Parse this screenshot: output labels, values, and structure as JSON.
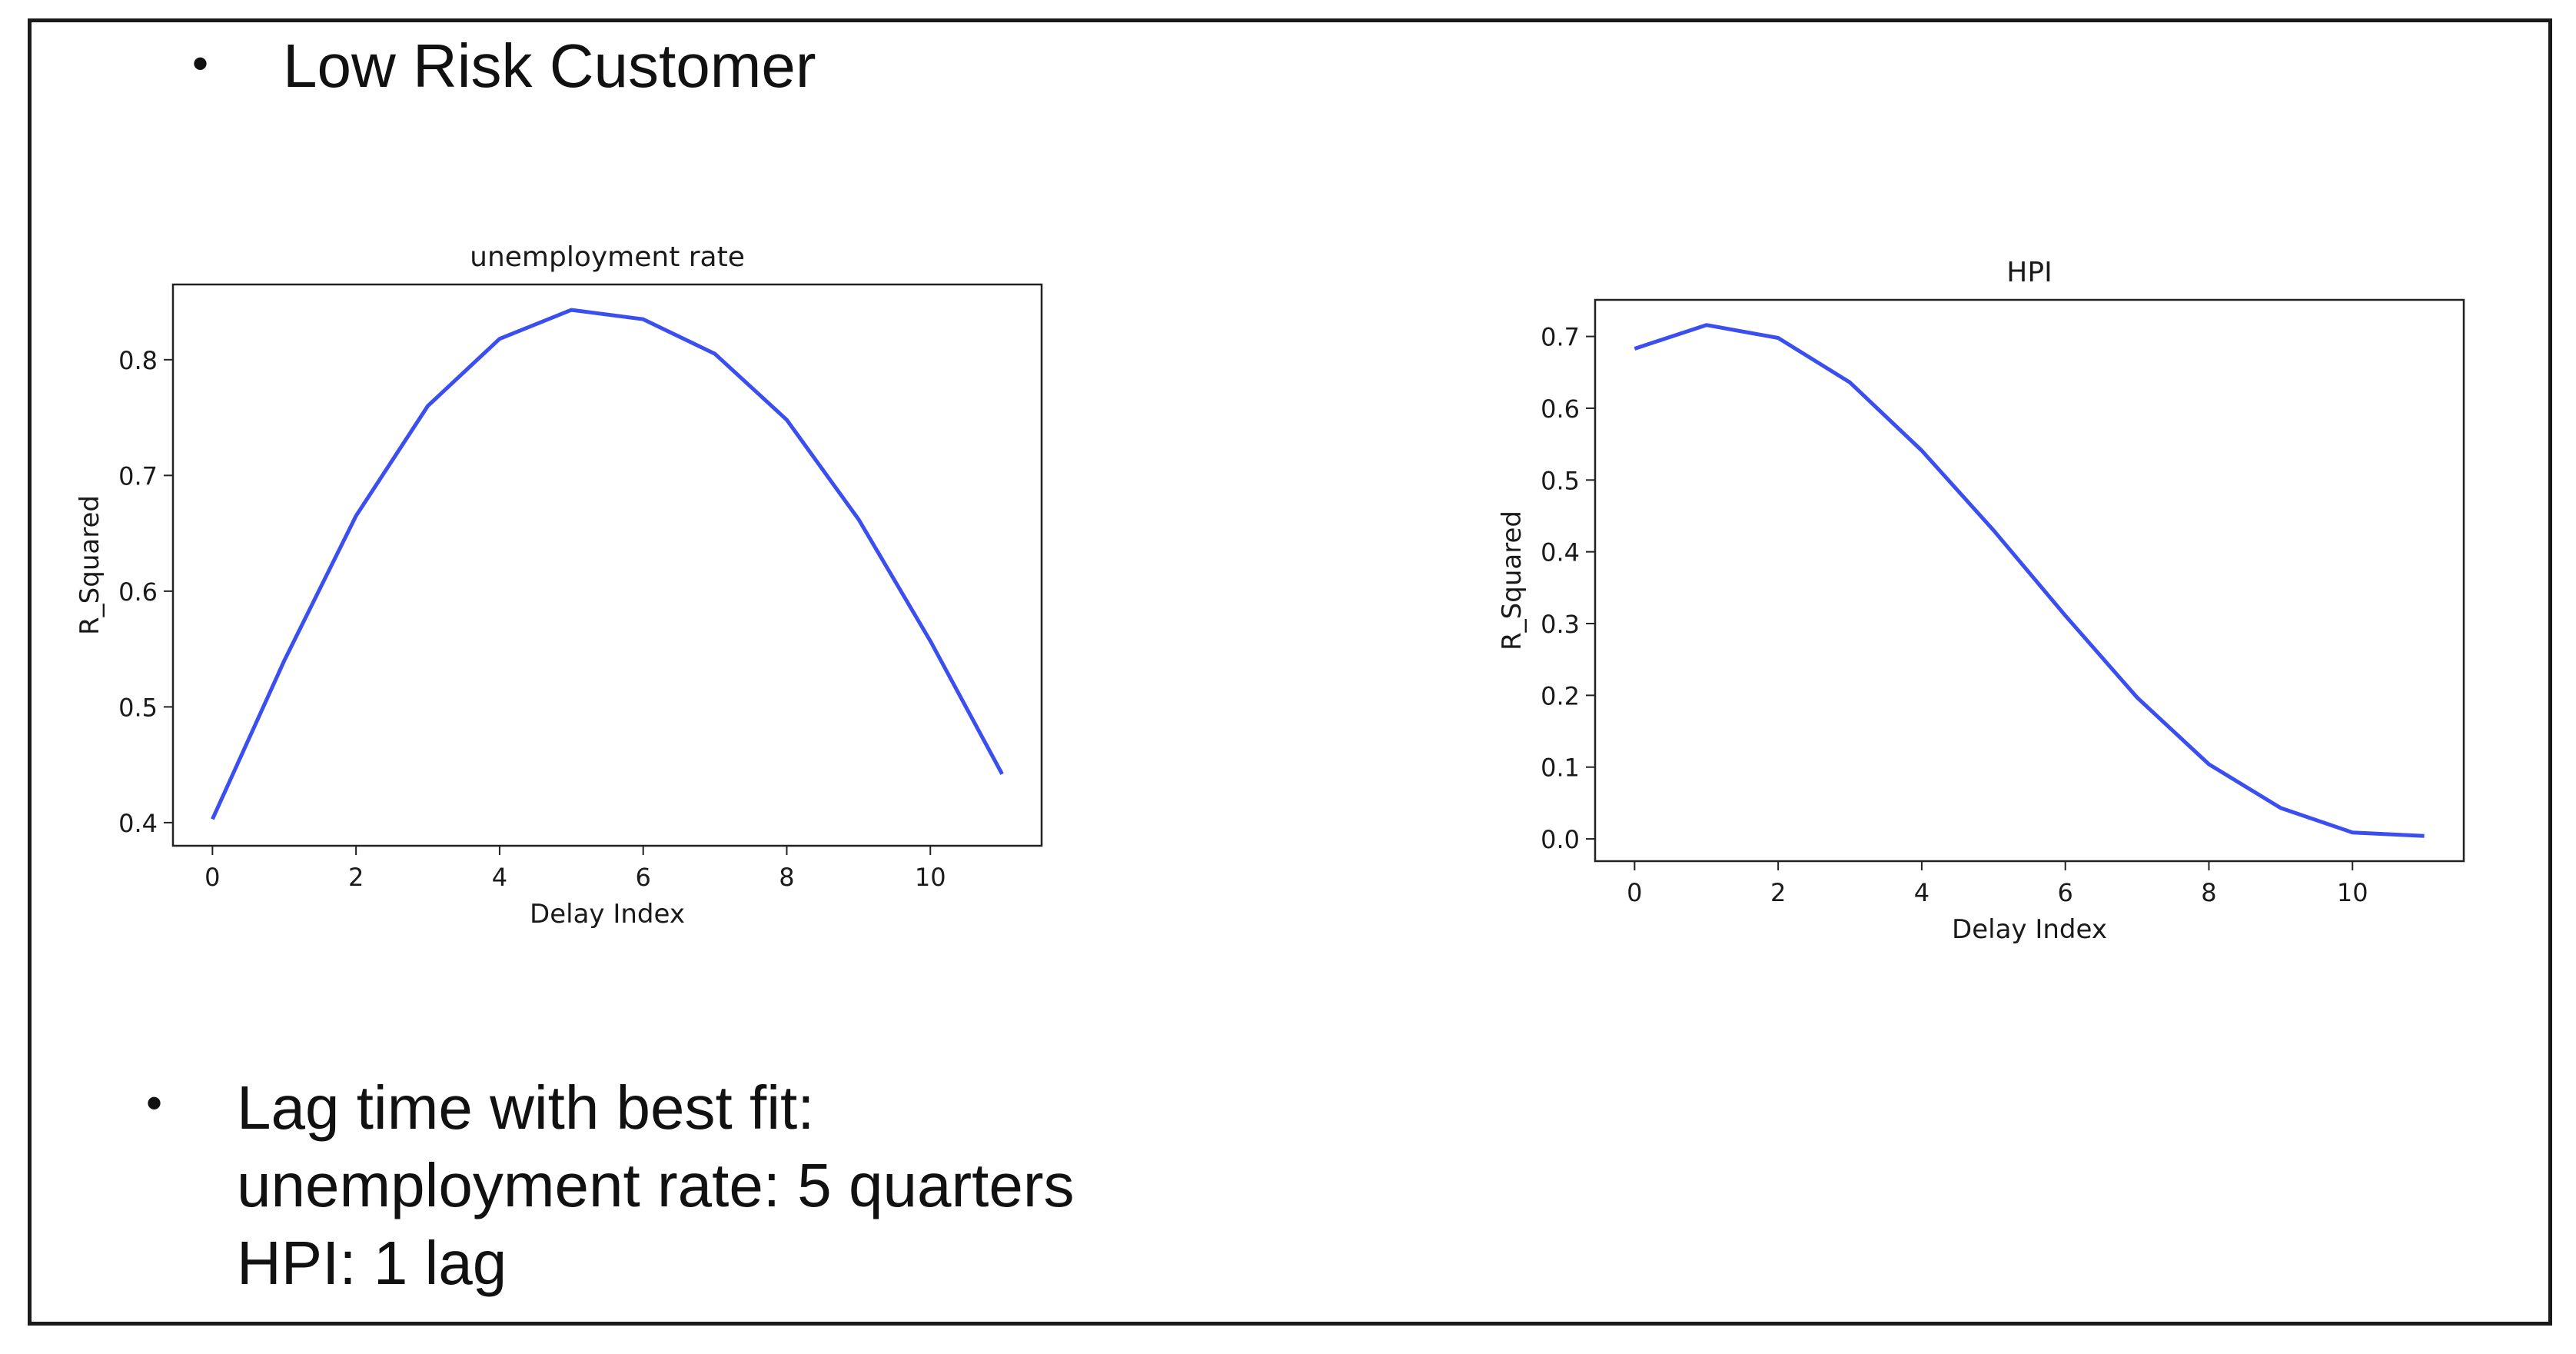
{
  "slide": {
    "heading": "Low Risk Customer",
    "notes": {
      "lines": [
        "Lag time with best fit:",
        "unemployment rate: 5 quarters",
        "HPI: 1 lag"
      ]
    }
  },
  "chart_data": [
    {
      "type": "line",
      "title": "unemployment rate",
      "xlabel": "Delay Index",
      "ylabel": "R_Squared",
      "x": [
        0,
        1,
        2,
        3,
        4,
        5,
        6,
        7,
        8,
        9,
        10,
        11
      ],
      "series": [
        {
          "values": [
            0.403,
            0.54,
            0.665,
            0.76,
            0.818,
            0.843,
            0.835,
            0.805,
            0.748,
            0.662,
            0.557,
            0.442
          ],
          "color": "#3b4ef0"
        }
      ],
      "xticks": [
        0,
        2,
        4,
        6,
        8,
        10
      ],
      "yticks": [
        0.4,
        0.5,
        0.6,
        0.7,
        0.8
      ],
      "xtick_labels": [
        "0",
        "2",
        "4",
        "6",
        "8",
        "10"
      ],
      "ytick_labels": [
        "0.4",
        "0.5",
        "0.6",
        "0.7",
        "0.8"
      ],
      "xlim": [
        -0.55,
        11.55
      ],
      "ylim": [
        0.38,
        0.865
      ],
      "grid": false,
      "legend": "none"
    },
    {
      "type": "line",
      "title": "HPI",
      "xlabel": "Delay Index",
      "ylabel": "R_Squared",
      "x": [
        0,
        1,
        2,
        3,
        4,
        5,
        6,
        7,
        8,
        9,
        10,
        11
      ],
      "series": [
        {
          "values": [
            0.683,
            0.716,
            0.698,
            0.636,
            0.541,
            0.43,
            0.311,
            0.197,
            0.104,
            0.043,
            0.009,
            0.004
          ],
          "color": "#3b4ef0"
        }
      ],
      "xticks": [
        0,
        2,
        4,
        6,
        8,
        10
      ],
      "yticks": [
        0.0,
        0.1,
        0.2,
        0.3,
        0.4,
        0.5,
        0.6,
        0.7
      ],
      "xtick_labels": [
        "0",
        "2",
        "4",
        "6",
        "8",
        "10"
      ],
      "ytick_labels": [
        "0.0",
        "0.1",
        "0.2",
        "0.3",
        "0.4",
        "0.5",
        "0.6",
        "0.7"
      ],
      "xlim": [
        -0.55,
        11.55
      ],
      "ylim": [
        -0.031,
        0.751
      ],
      "grid": false,
      "legend": "none"
    }
  ]
}
